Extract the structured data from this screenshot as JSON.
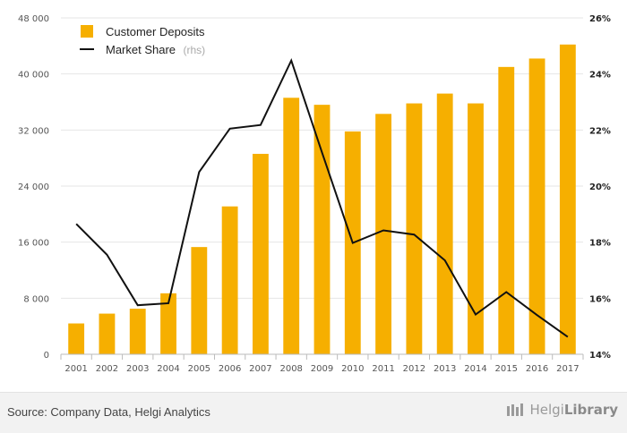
{
  "chart_data": {
    "type": "bar",
    "categories": [
      "2001",
      "2002",
      "2003",
      "2004",
      "2005",
      "2006",
      "2007",
      "2008",
      "2009",
      "2010",
      "2011",
      "2012",
      "2013",
      "2014",
      "2015",
      "2016",
      "2017"
    ],
    "series": [
      {
        "name": "Customer Deposits",
        "type": "bar",
        "axis": "left",
        "color": "#F6AF00",
        "values": [
          4400,
          5800,
          6500,
          8700,
          15300,
          21100,
          28600,
          36600,
          35600,
          31800,
          34300,
          35800,
          37200,
          35800,
          41000,
          42200,
          44200
        ]
      },
      {
        "name": "Market Share",
        "name_suffix": "(rhs)",
        "type": "line",
        "axis": "right",
        "color": "#111111",
        "values": [
          18.65,
          17.55,
          15.75,
          15.82,
          20.5,
          22.05,
          22.18,
          24.48,
          21.2,
          17.97,
          18.42,
          18.27,
          17.35,
          15.42,
          16.22,
          15.4,
          14.62
        ]
      }
    ],
    "y_left": {
      "min": 0,
      "max": 48000,
      "ticks": [
        "0",
        "8 000",
        "16 000",
        "24 000",
        "32 000",
        "40 000",
        "48 000"
      ],
      "tick_values": [
        0,
        8000,
        16000,
        24000,
        32000,
        40000,
        48000
      ]
    },
    "y_right": {
      "min": 14,
      "max": 26,
      "ticks": [
        "14%",
        "16%",
        "18%",
        "20%",
        "22%",
        "24%",
        "26%"
      ],
      "tick_values": [
        14,
        16,
        18,
        20,
        22,
        24,
        26
      ]
    },
    "grid": true,
    "legend": "top-left",
    "title": "",
    "xlabel": "",
    "ylabel": ""
  },
  "footer": {
    "source": "Source: Company Data, Helgi Analytics",
    "logo_light": "Helgi",
    "logo_bold": "Library"
  }
}
